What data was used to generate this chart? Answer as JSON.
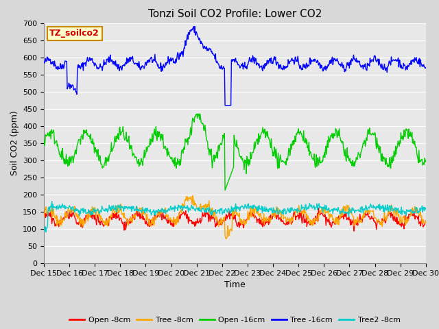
{
  "title": "Tonzi Soil CO2 Profile: Lower CO2",
  "xlabel": "Time",
  "ylabel": "Soil CO2 (ppm)",
  "ylim": [
    0,
    700
  ],
  "yticks": [
    0,
    50,
    100,
    150,
    200,
    250,
    300,
    350,
    400,
    450,
    500,
    550,
    600,
    650,
    700
  ],
  "legend_label": "TZ_soilco2",
  "series": {
    "Open_8cm": {
      "color": "#ff0000",
      "label": "Open -8cm"
    },
    "Tree_8cm": {
      "color": "#ffa500",
      "label": "Tree -8cm"
    },
    "Open_16cm": {
      "color": "#00cc00",
      "label": "Open -16cm"
    },
    "Tree_16cm": {
      "color": "#0000ff",
      "label": "Tree -16cm"
    },
    "Tree2_8cm": {
      "color": "#00cccc",
      "label": "Tree2 -8cm"
    }
  },
  "n_points": 720,
  "xtick_labels": [
    "Dec 15",
    "Dec 16",
    "Dec 17",
    "Dec 18",
    "Dec 19",
    "Dec 20",
    "Dec 21",
    "Dec 22",
    "Dec 23",
    "Dec 24",
    "Dec 25",
    "Dec 26",
    "Dec 27",
    "Dec 28",
    "Dec 29",
    "Dec 30"
  ],
  "fig_bg_color": "#d8d8d8",
  "plot_bg_color": "#e8e8e8",
  "linewidth": 1.0,
  "title_fontsize": 11,
  "axis_label_fontsize": 9,
  "tick_fontsize": 8,
  "legend_box_facecolor": "#ffffcc",
  "legend_box_edgecolor": "#cc8800",
  "legend_text_color": "#cc0000"
}
